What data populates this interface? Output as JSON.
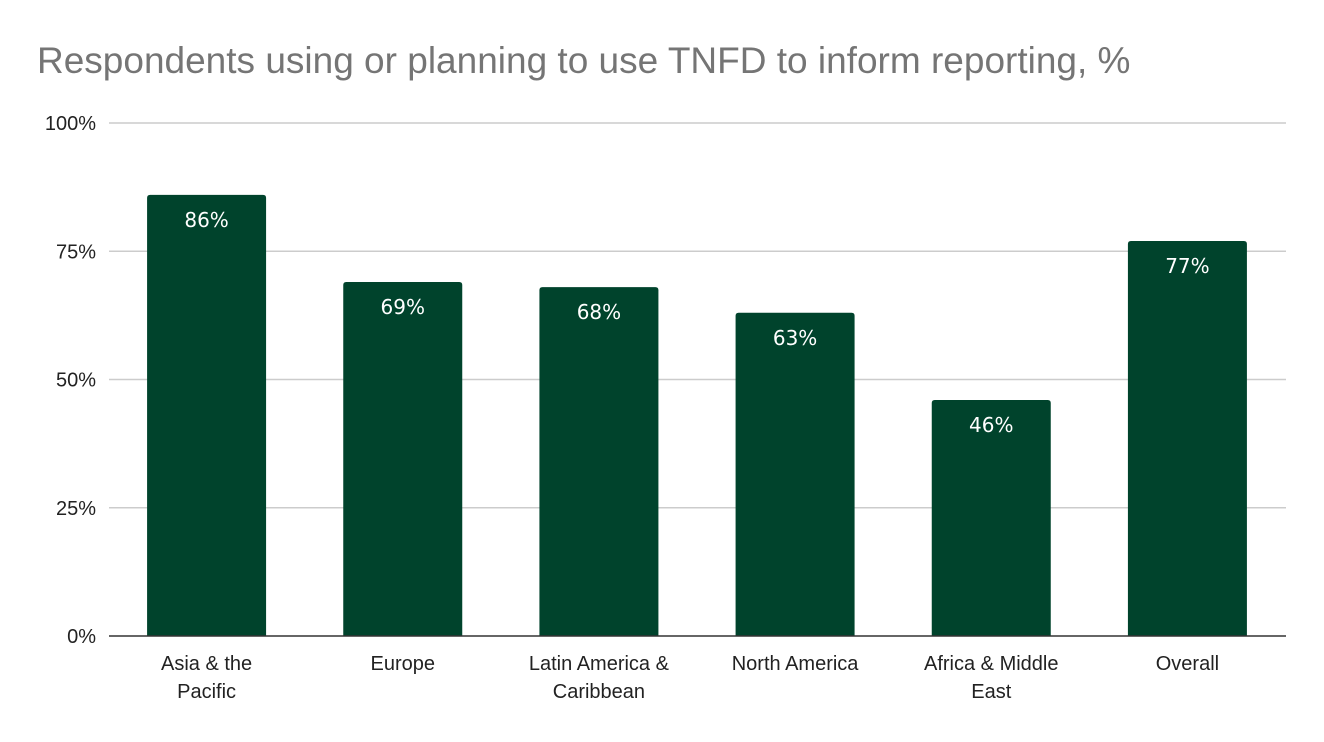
{
  "chart_data": {
    "type": "bar",
    "title": "Respondents using or planning to use TNFD to inform reporting, %",
    "categories": [
      [
        "Asia & the",
        "Pacific"
      ],
      [
        "Europe"
      ],
      [
        "Latin America &",
        "Caribbean"
      ],
      [
        "North America"
      ],
      [
        "Africa & Middle",
        "East"
      ],
      [
        "Overall"
      ]
    ],
    "values": [
      86,
      69,
      68,
      63,
      46,
      77
    ],
    "data_labels": [
      "86%",
      "69%",
      "68%",
      "63%",
      "46%",
      "77%"
    ],
    "yticks": [
      0,
      25,
      50,
      75,
      100
    ],
    "ytick_labels": [
      "0%",
      "25%",
      "50%",
      "75%",
      "100%"
    ],
    "ylim": [
      0,
      100
    ],
    "grid": true,
    "legend": "none",
    "colors": {
      "bar": "#00432c",
      "grid": "#cccccc",
      "axis": "#333333",
      "title": "#757575"
    }
  }
}
